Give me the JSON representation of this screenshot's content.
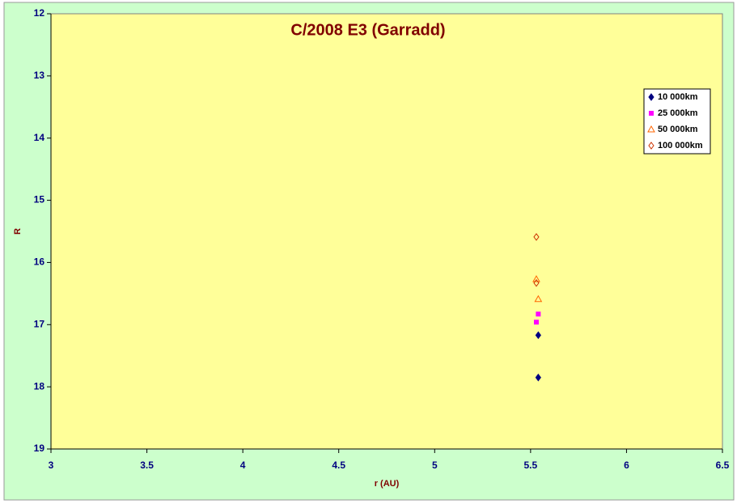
{
  "chart_data": {
    "type": "scatter",
    "title": "C/2008 E3 (Garradd)",
    "x_label": "r (AU)",
    "y_label": "R",
    "xlim": [
      3,
      6.5
    ],
    "xticks": [
      3,
      3.5,
      4,
      4.5,
      5,
      5.5,
      6,
      6.5
    ],
    "ylim": [
      12,
      19
    ],
    "yticks": [
      12,
      13,
      14,
      15,
      16,
      17,
      18,
      19
    ],
    "y_reversed": true,
    "legend": "upper right",
    "series": [
      {
        "name": "10 000km",
        "color": "#000080",
        "marker": "diamond",
        "x": [
          5.54,
          5.54
        ],
        "values": [
          17.17,
          17.85
        ]
      },
      {
        "name": "25 000km",
        "color": "#ff00ff",
        "marker": "square",
        "x": [
          5.54,
          5.53
        ],
        "values": [
          16.83,
          16.96
        ]
      },
      {
        "name": "50 000km",
        "color": "#ff6600",
        "marker": "triangle-open",
        "x": [
          5.53,
          5.54
        ],
        "values": [
          16.27,
          16.59
        ]
      },
      {
        "name": "100 000km",
        "color": "#cc3300",
        "marker": "diamond-open",
        "x": [
          5.53,
          5.53
        ],
        "values": [
          15.59,
          16.33
        ]
      }
    ]
  }
}
